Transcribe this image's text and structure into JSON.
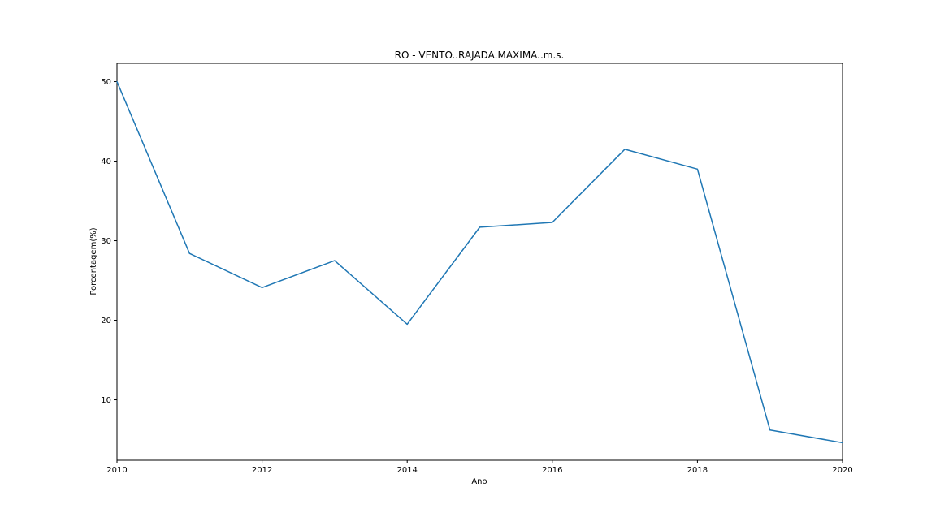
{
  "chart_data": {
    "type": "line",
    "title": "RO - VENTO..RAJADA.MAXIMA..m.s.",
    "xlabel": "Ano",
    "ylabel": "Porcentagem(%)",
    "xlim": [
      2010,
      2020
    ],
    "ylim": [
      2.4,
      52.3
    ],
    "x_ticks": [
      2010,
      2012,
      2014,
      2016,
      2018,
      2020
    ],
    "y_ticks": [
      10,
      20,
      30,
      40,
      50
    ],
    "grid": false,
    "series": [
      {
        "color": "#1f77b4",
        "x": [
          2010,
          2011,
          2012,
          2013,
          2014,
          2015,
          2016,
          2017,
          2018,
          2019,
          2020
        ],
        "y": [
          50.0,
          28.4,
          24.1,
          27.5,
          19.5,
          31.7,
          32.3,
          41.5,
          39.0,
          6.2,
          4.6
        ]
      }
    ]
  }
}
